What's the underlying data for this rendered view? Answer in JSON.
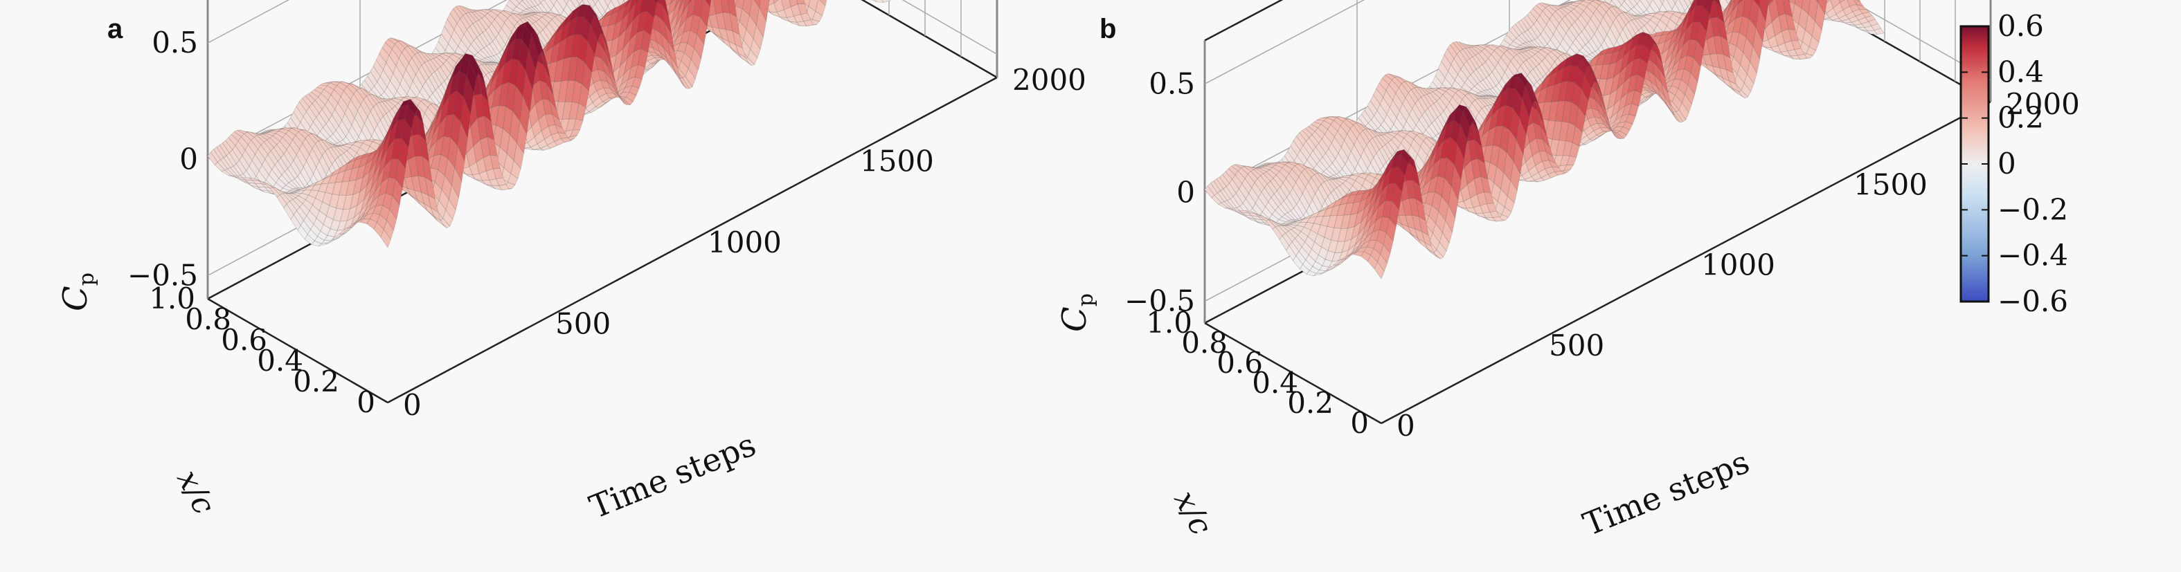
{
  "chart_data": [
    {
      "type": "surface",
      "panel_label": "a",
      "zlabel_main": "C",
      "zlabel_sub": "p",
      "ylabel": "Time steps",
      "xlabel": "x/c",
      "x_ticks": [
        "0",
        "0.2",
        "0.4",
        "0.6",
        "0.8",
        "1.0"
      ],
      "y_ticks": [
        "0",
        "500",
        "1000",
        "1500",
        "2000"
      ],
      "z_ticks": [
        "0.5",
        "0",
        "−0.5"
      ],
      "x_range": [
        0,
        1.0
      ],
      "y_range": [
        0,
        2000
      ],
      "z_range": [
        -0.6,
        0.6
      ],
      "peak_time_steps": [
        100,
        300,
        500,
        700,
        900,
        1100,
        1300,
        1500
      ],
      "peak_cp": 0.6,
      "min_cp": -0.6,
      "grid": true
    },
    {
      "type": "surface",
      "panel_label": "b",
      "zlabel_main": "C",
      "zlabel_sub": "p",
      "ylabel": "Time steps",
      "xlabel": "x/c",
      "x_ticks": [
        "0",
        "0.2",
        "0.4",
        "0.6",
        "0.8",
        "1.0"
      ],
      "y_ticks": [
        "0",
        "500",
        "1000",
        "1500",
        "2000"
      ],
      "z_ticks": [
        "0.5",
        "0",
        "−0.5"
      ],
      "x_range": [
        0,
        1.0
      ],
      "y_range": [
        0,
        2000
      ],
      "z_range": [
        -0.6,
        0.6
      ],
      "peak_time_steps": [
        100,
        300,
        500,
        700,
        900,
        1100,
        1300,
        1500
      ],
      "peak_cp": 0.55,
      "min_cp": -0.6,
      "grid": true
    }
  ],
  "colorbar": {
    "ticks": [
      "0.6",
      "0.4",
      "0.2",
      "0",
      "−0.2",
      "−0.4",
      "−0.6"
    ],
    "tick_values": [
      0.6,
      0.4,
      0.2,
      0,
      -0.2,
      -0.4,
      -0.6
    ],
    "range": [
      -0.6,
      0.6
    ],
    "colors": [
      "#3b4cc0",
      "#7da3d6",
      "#c8dff0",
      "#efefef",
      "#f2c2b6",
      "#e27a72",
      "#c3303e",
      "#7a1030"
    ]
  }
}
